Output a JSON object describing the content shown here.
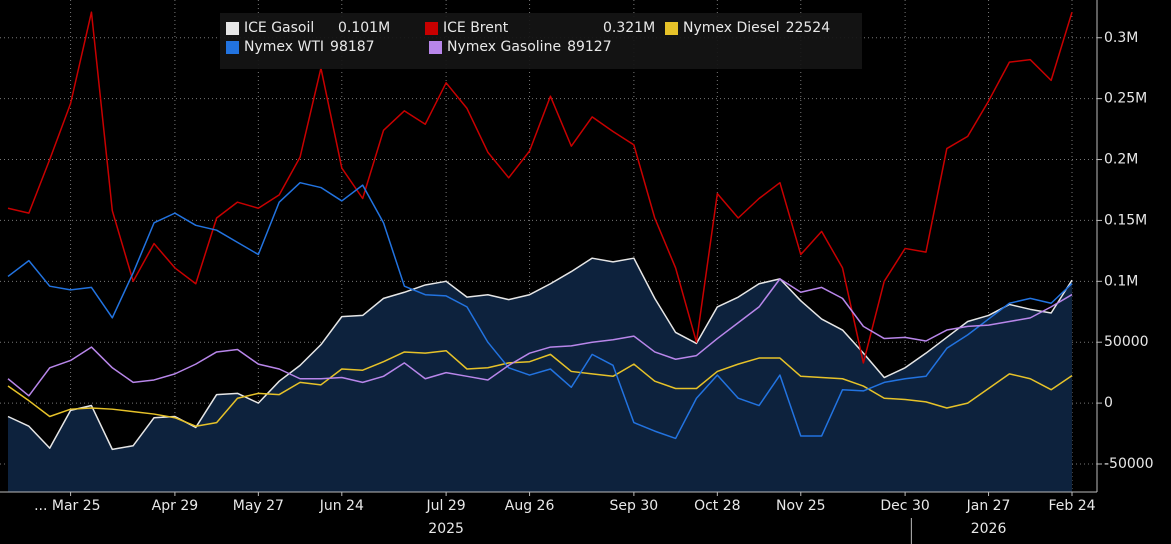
{
  "chart_data": {
    "type": "line",
    "categories": [
      null,
      null,
      null,
      "... Mar 25",
      null,
      null,
      null,
      null,
      "Apr 29",
      null,
      null,
      null,
      "May 27",
      null,
      null,
      null,
      "Jun 24",
      null,
      null,
      null,
      null,
      "Jul 29",
      null,
      null,
      null,
      "Aug 26",
      null,
      null,
      null,
      null,
      "Sep 30",
      null,
      null,
      null,
      "Oct 28",
      null,
      null,
      null,
      "Nov 25",
      null,
      null,
      null,
      null,
      "Dec 30",
      null,
      null,
      null,
      "Jan 27",
      null,
      null,
      null,
      "Feb 24"
    ],
    "years": [
      "2025",
      "2026"
    ],
    "ylim": [
      -73000,
      331000
    ],
    "yticks": [
      -50000,
      0,
      50000,
      {
        "value": 100000,
        "label": "0.1M"
      },
      {
        "value": 150000,
        "label": "0.15M"
      },
      {
        "value": 200000,
        "label": "0.2M"
      },
      {
        "value": 250000,
        "label": "0.25M"
      },
      {
        "value": 300000,
        "label": "0.3M"
      }
    ],
    "grid": true,
    "series": [
      {
        "name": "ICE Gasoil",
        "last_value_label": "0.101M",
        "color": "#e6e6e6",
        "area": true,
        "area_color": "#0d223d",
        "values": [
          -11000,
          -19000,
          -37000,
          -6000,
          -2000,
          -38000,
          -35000,
          -12000,
          -11000,
          -20000,
          7000,
          8000,
          0,
          18000,
          31000,
          48000,
          71000,
          72000,
          86000,
          91000,
          97000,
          100000,
          87000,
          89000,
          85000,
          89000,
          98000,
          108000,
          119000,
          116000,
          119000,
          86000,
          58000,
          49000,
          79000,
          87000,
          98000,
          102000,
          84000,
          69000,
          60000,
          41000,
          21000,
          29000,
          41000,
          54000,
          67000,
          72000,
          81000,
          77000,
          74000,
          101000
        ]
      },
      {
        "name": "ICE Brent",
        "last_value_label": "0.321M",
        "color": "#c80000",
        "values": [
          160000,
          156000,
          200000,
          246000,
          321000,
          158000,
          100000,
          131000,
          111000,
          98000,
          152000,
          165000,
          160000,
          171000,
          202000,
          275000,
          193000,
          168000,
          224000,
          240000,
          229000,
          263000,
          242000,
          206000,
          185000,
          207000,
          252000,
          211000,
          235000,
          223000,
          212000,
          152000,
          111000,
          50000,
          172000,
          152000,
          168000,
          181000,
          122000,
          141000,
          111000,
          33000,
          100000,
          127000,
          124000,
          209000,
          219000,
          248000,
          280000,
          282000,
          265000,
          321000
        ]
      },
      {
        "name": "Nymex Diesel",
        "last_value_label": "22524",
        "color": "#e6c229",
        "values": [
          14000,
          2000,
          -11000,
          -5000,
          -4000,
          -5000,
          -7000,
          -9000,
          -12000,
          -19000,
          -16000,
          4000,
          8000,
          7000,
          17000,
          15000,
          28000,
          27000,
          34000,
          42000,
          41000,
          43000,
          28000,
          29000,
          33000,
          34000,
          40000,
          26000,
          24000,
          22000,
          32000,
          18000,
          12000,
          12000,
          26000,
          32000,
          37000,
          37000,
          22000,
          21000,
          20000,
          14000,
          4000,
          3000,
          1000,
          -4000,
          0,
          12000,
          24000,
          20000,
          11000,
          22524
        ]
      },
      {
        "name": "Nymex WTI",
        "last_value_label": "98187",
        "color": "#2273e0",
        "values": [
          104000,
          117000,
          96000,
          93000,
          95000,
          70000,
          107000,
          148000,
          156000,
          146000,
          142000,
          132000,
          122000,
          165000,
          181000,
          177000,
          166000,
          179000,
          148000,
          96000,
          89000,
          88000,
          79000,
          50000,
          29000,
          23000,
          28000,
          13000,
          40000,
          31000,
          -16000,
          -23000,
          -29000,
          4000,
          23000,
          4000,
          -2000,
          23000,
          -27000,
          -27000,
          11000,
          10000,
          17000,
          20000,
          22000,
          45000,
          56000,
          69000,
          82000,
          86000,
          82000,
          98187
        ]
      },
      {
        "name": "Nymex Gasoline",
        "last_value_label": "89127",
        "color": "#b886ea",
        "values": [
          20000,
          6000,
          29000,
          35000,
          46000,
          29000,
          17000,
          19000,
          24000,
          32000,
          42000,
          44000,
          32000,
          28000,
          20000,
          20000,
          21000,
          17000,
          22000,
          33000,
          20000,
          25000,
          22000,
          19000,
          31000,
          41000,
          46000,
          47000,
          50000,
          52000,
          55000,
          42000,
          36000,
          39000,
          53000,
          66000,
          79000,
          102000,
          91000,
          95000,
          86000,
          63000,
          53000,
          54000,
          51000,
          60000,
          63000,
          64000,
          67000,
          70000,
          79000,
          89127
        ]
      }
    ]
  }
}
